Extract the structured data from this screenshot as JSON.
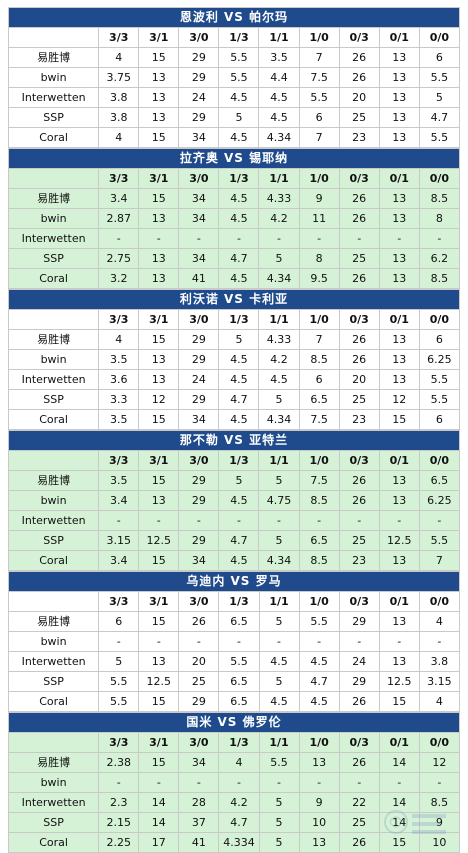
{
  "columns": [
    "3/3",
    "3/1",
    "3/0",
    "1/3",
    "1/1",
    "1/0",
    "0/3",
    "0/1",
    "0/0"
  ],
  "colors": {
    "title_bg": "#1f4a8c",
    "green_row": "#d6f2d6",
    "white_row": "#ffffff"
  },
  "matches": [
    {
      "title": "恩波利 VS 帕尔玛",
      "shade": "white",
      "rows": [
        {
          "book": "易胜博",
          "odds": [
            "4",
            "15",
            "29",
            "5.5",
            "3.5",
            "7",
            "26",
            "13",
            "6"
          ]
        },
        {
          "book": "bwin",
          "odds": [
            "3.75",
            "13",
            "29",
            "5.5",
            "4.4",
            "7.5",
            "26",
            "13",
            "5.5"
          ]
        },
        {
          "book": "Interwetten",
          "odds": [
            "3.8",
            "13",
            "24",
            "4.5",
            "4.5",
            "5.5",
            "20",
            "13",
            "5"
          ]
        },
        {
          "book": "SSP",
          "odds": [
            "3.8",
            "13",
            "29",
            "5",
            "4.5",
            "6",
            "25",
            "13",
            "4.7"
          ]
        },
        {
          "book": "Coral",
          "odds": [
            "4",
            "15",
            "34",
            "4.5",
            "4.34",
            "7",
            "23",
            "13",
            "5.5"
          ]
        }
      ]
    },
    {
      "title": "拉齐奥 VS 锡耶纳",
      "shade": "green",
      "rows": [
        {
          "book": "易胜博",
          "odds": [
            "3.4",
            "15",
            "34",
            "4.5",
            "4.33",
            "9",
            "26",
            "13",
            "8.5"
          ]
        },
        {
          "book": "bwin",
          "odds": [
            "2.87",
            "13",
            "34",
            "4.5",
            "4.2",
            "11",
            "26",
            "13",
            "8"
          ]
        },
        {
          "book": "Interwetten",
          "odds": [
            "-",
            "-",
            "-",
            "-",
            "-",
            "-",
            "-",
            "-",
            "-"
          ]
        },
        {
          "book": "SSP",
          "odds": [
            "2.75",
            "13",
            "34",
            "4.7",
            "5",
            "8",
            "25",
            "13",
            "6.2"
          ]
        },
        {
          "book": "Coral",
          "odds": [
            "3.2",
            "13",
            "41",
            "4.5",
            "4.34",
            "9.5",
            "26",
            "13",
            "8.5"
          ]
        }
      ]
    },
    {
      "title": "利沃诺 VS 卡利亚",
      "shade": "white",
      "rows": [
        {
          "book": "易胜博",
          "odds": [
            "4",
            "15",
            "29",
            "5",
            "4.33",
            "7",
            "26",
            "13",
            "6"
          ]
        },
        {
          "book": "bwin",
          "odds": [
            "3.5",
            "13",
            "29",
            "4.5",
            "4.2",
            "8.5",
            "26",
            "13",
            "6.25"
          ]
        },
        {
          "book": "Interwetten",
          "odds": [
            "3.6",
            "13",
            "24",
            "4.5",
            "4.5",
            "6",
            "20",
            "13",
            "5.5"
          ]
        },
        {
          "book": "SSP",
          "odds": [
            "3.3",
            "12",
            "29",
            "4.7",
            "5",
            "6.5",
            "25",
            "12",
            "5.5"
          ]
        },
        {
          "book": "Coral",
          "odds": [
            "3.5",
            "15",
            "34",
            "4.5",
            "4.34",
            "7.5",
            "23",
            "15",
            "6"
          ]
        }
      ]
    },
    {
      "title": "那不勒 VS 亚特兰",
      "shade": "green",
      "rows": [
        {
          "book": "易胜博",
          "odds": [
            "3.5",
            "15",
            "29",
            "5",
            "5",
            "7.5",
            "26",
            "13",
            "6.5"
          ]
        },
        {
          "book": "bwin",
          "odds": [
            "3.4",
            "13",
            "29",
            "4.5",
            "4.75",
            "8.5",
            "26",
            "13",
            "6.25"
          ]
        },
        {
          "book": "Interwetten",
          "odds": [
            "-",
            "-",
            "-",
            "-",
            "-",
            "-",
            "-",
            "-",
            "-"
          ]
        },
        {
          "book": "SSP",
          "odds": [
            "3.15",
            "12.5",
            "29",
            "4.7",
            "5",
            "6.5",
            "25",
            "12.5",
            "5.5"
          ]
        },
        {
          "book": "Coral",
          "odds": [
            "3.4",
            "15",
            "34",
            "4.5",
            "4.34",
            "8.5",
            "23",
            "13",
            "7"
          ]
        }
      ]
    },
    {
      "title": "乌迪内 VS 罗马",
      "shade": "white",
      "rows": [
        {
          "book": "易胜博",
          "odds": [
            "6",
            "15",
            "26",
            "6.5",
            "5",
            "5.5",
            "29",
            "13",
            "4"
          ]
        },
        {
          "book": "bwin",
          "odds": [
            "-",
            "-",
            "-",
            "-",
            "-",
            "-",
            "-",
            "-",
            "-"
          ]
        },
        {
          "book": "Interwetten",
          "odds": [
            "5",
            "13",
            "20",
            "5.5",
            "4.5",
            "4.5",
            "24",
            "13",
            "3.8"
          ]
        },
        {
          "book": "SSP",
          "odds": [
            "5.5",
            "12.5",
            "25",
            "6.5",
            "5",
            "4.7",
            "29",
            "12.5",
            "3.15"
          ]
        },
        {
          "book": "Coral",
          "odds": [
            "5.5",
            "15",
            "29",
            "6.5",
            "4.5",
            "4.5",
            "26",
            "15",
            "4"
          ]
        }
      ]
    },
    {
      "title": "国米 VS 佛罗伦",
      "shade": "green",
      "rows": [
        {
          "book": "易胜博",
          "odds": [
            "2.38",
            "15",
            "34",
            "4",
            "5.5",
            "13",
            "26",
            "14",
            "12"
          ]
        },
        {
          "book": "bwin",
          "odds": [
            "-",
            "-",
            "-",
            "-",
            "-",
            "-",
            "-",
            "-",
            "-"
          ]
        },
        {
          "book": "Interwetten",
          "odds": [
            "2.3",
            "14",
            "28",
            "4.2",
            "5",
            "9",
            "22",
            "14",
            "8.5"
          ]
        },
        {
          "book": "SSP",
          "odds": [
            "2.15",
            "14",
            "37",
            "4.7",
            "5",
            "10",
            "25",
            "14",
            "9"
          ]
        },
        {
          "book": "Coral",
          "odds": [
            "2.25",
            "17",
            "41",
            "4.334",
            "5",
            "13",
            "26",
            "15",
            "10"
          ]
        }
      ]
    }
  ]
}
